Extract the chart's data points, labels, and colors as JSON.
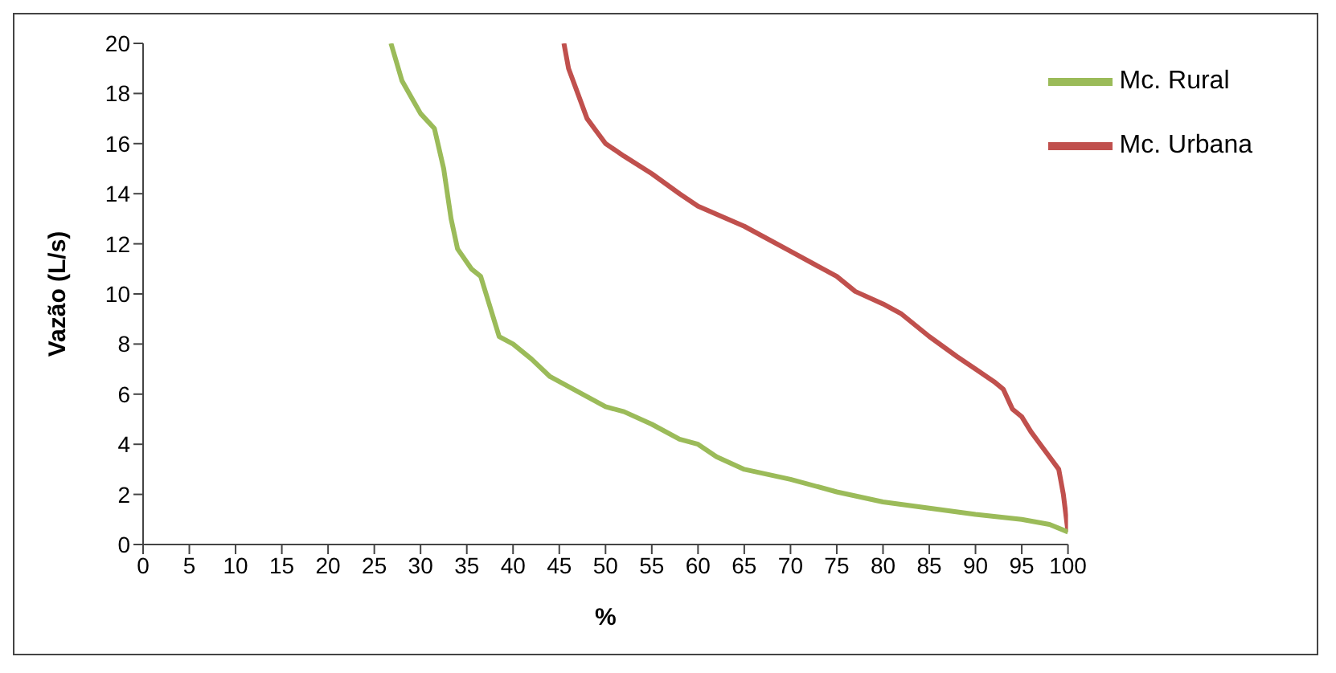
{
  "chart_data": {
    "type": "line",
    "xlabel": "%",
    "ylabel": "Vazão (L/s)",
    "xlim": [
      0,
      100
    ],
    "xticks": [
      0,
      5,
      10,
      15,
      20,
      25,
      30,
      35,
      40,
      45,
      50,
      55,
      60,
      65,
      70,
      75,
      80,
      85,
      90,
      95,
      100
    ],
    "ylim": [
      0,
      20
    ],
    "yticks": [
      0,
      2,
      4,
      6,
      8,
      10,
      12,
      14,
      16,
      18,
      20
    ],
    "grid": false,
    "legend": "top right",
    "marker": "none",
    "line_style": "solid",
    "series": [
      {
        "name": "Mc. Urbana",
        "color": "#c0504d",
        "x": [
          45.5,
          46,
          47,
          48,
          49,
          50,
          52,
          55,
          58,
          60,
          65,
          70,
          75,
          77,
          80,
          82,
          85,
          88,
          90,
          92,
          93,
          94,
          95,
          96,
          97,
          98,
          99,
          99.5,
          100
        ],
        "values": [
          20,
          19,
          18,
          17,
          16.5,
          16,
          15.5,
          14.8,
          14,
          13.5,
          12.7,
          11.7,
          10.7,
          10.1,
          9.6,
          9.2,
          8.3,
          7.5,
          7,
          6.5,
          6.2,
          5.4,
          5.1,
          4.5,
          4,
          3.5,
          3,
          2,
          0.5
        ]
      },
      {
        "name": "Mc. Rural",
        "color": "#9bbb59",
        "x": [
          26.8,
          28,
          30,
          31.5,
          32.5,
          33.3,
          34,
          35.5,
          36.5,
          37.5,
          38.5,
          40,
          42,
          44,
          46,
          48,
          50,
          52,
          55,
          58,
          60,
          62,
          65,
          70,
          75,
          80,
          85,
          90,
          95,
          98,
          100
        ],
        "values": [
          20,
          18.5,
          17.2,
          16.6,
          15,
          13,
          11.8,
          11,
          10.7,
          9.5,
          8.3,
          8,
          7.4,
          6.7,
          6.3,
          5.9,
          5.5,
          5.3,
          4.8,
          4.2,
          4,
          3.5,
          3,
          2.6,
          2.1,
          1.7,
          1.45,
          1.2,
          1,
          0.8,
          0.5
        ]
      }
    ]
  }
}
